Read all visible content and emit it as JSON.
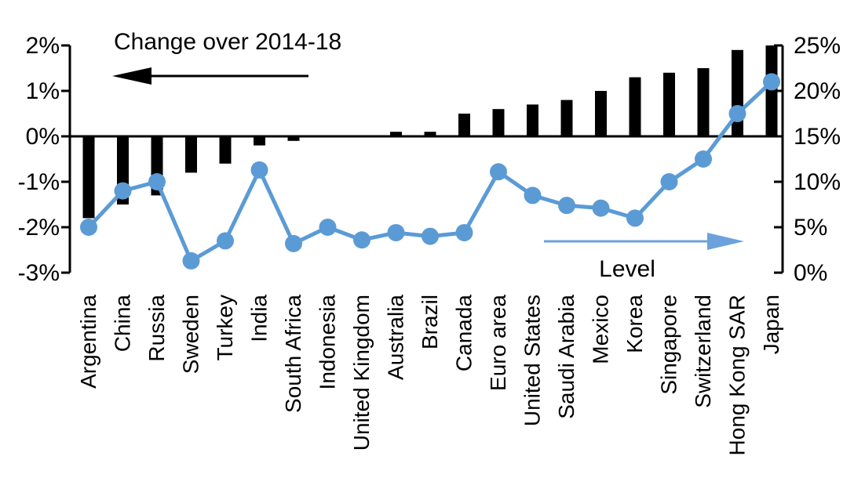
{
  "chart_data": {
    "type": "bar+line",
    "title": "",
    "categories": [
      "Argentina",
      "China",
      "Russia",
      "Sweden",
      "Turkey",
      "India",
      "South Africa",
      "Indonesia",
      "United Kingdom",
      "Australia",
      "Brazil",
      "Canada",
      "Euro area",
      "United States",
      "Saudi Arabia",
      "Mexico",
      "Korea",
      "Singapore",
      "Switzerland",
      "Hong Kong SAR",
      "Japan"
    ],
    "series": [
      {
        "name": "Change over 2014-18",
        "type": "bar",
        "axis": "left",
        "color": "#000000",
        "values": [
          -1.8,
          -1.5,
          -1.3,
          -0.8,
          -0.6,
          -0.2,
          -0.1,
          0,
          0,
          0.1,
          0.1,
          0.5,
          0.6,
          0.7,
          0.8,
          1.0,
          1.3,
          1.4,
          1.5,
          1.9,
          2.0
        ]
      },
      {
        "name": "Level",
        "type": "line",
        "axis": "right",
        "color": "#5B9BD5",
        "values": [
          5,
          9,
          10,
          1.3,
          3.5,
          11.3,
          3.2,
          5,
          3.6,
          4.4,
          4.0,
          4.4,
          11.1,
          8.5,
          7.4,
          7.1,
          6.0,
          10.0,
          12.5,
          17.5,
          21.0
        ]
      }
    ],
    "left_axis": {
      "min": -3,
      "max": 2,
      "step": 1,
      "unit": "%",
      "tick_labels": [
        "2%",
        "1%",
        "0%",
        "-1%",
        "-2%",
        "-3%"
      ]
    },
    "right_axis": {
      "min": 0,
      "max": 25,
      "step": 5,
      "unit": "%",
      "tick_labels": [
        "25%",
        "20%",
        "15%",
        "10%",
        "5%",
        "0%"
      ]
    },
    "annotations": [
      {
        "text": "Change over 2014-18",
        "arrow": "left",
        "color": "#000000"
      },
      {
        "text": "Level",
        "arrow": "right",
        "color": "#6CA2DB"
      }
    ],
    "legend": "none",
    "grid": false,
    "colors": {
      "bar": "#000000",
      "line": "#5B9BD5",
      "marker": "#5B9BD5",
      "blue_arrow": "#6CA2DB",
      "black_arrow": "#000000",
      "axis": "#000000"
    }
  }
}
